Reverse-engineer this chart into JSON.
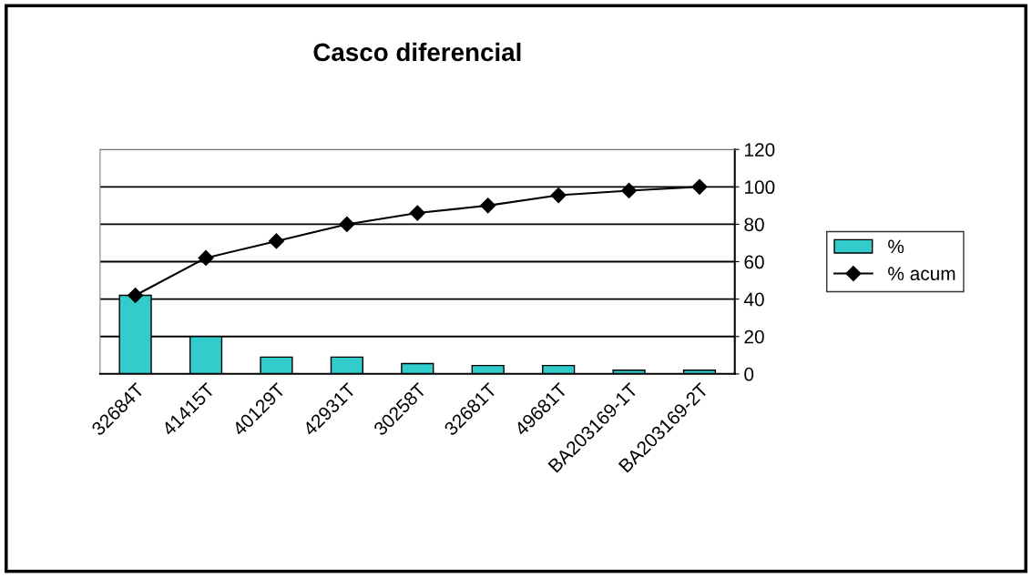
{
  "chart_data": {
    "type": "bar",
    "title": "Casco diferencial",
    "categories": [
      "32684T",
      "41415T",
      "40129T",
      "42931T",
      "30258T",
      "32681T",
      "49681T",
      "BA203169-1T",
      "BA203169-2T"
    ],
    "series": [
      {
        "name": "%",
        "color": "#33cccc",
        "values": [
          42,
          20,
          9,
          9,
          5.5,
          4.5,
          4.5,
          2,
          2
        ]
      },
      {
        "name": "% acum",
        "type": "line",
        "color": "#000000",
        "values": [
          42,
          62,
          71,
          80,
          86,
          90,
          95.5,
          98,
          100
        ]
      }
    ],
    "ylim": [
      0,
      120
    ],
    "yticks": [
      0,
      20,
      40,
      60,
      80,
      100,
      120
    ],
    "grid": "y",
    "legend": "right",
    "marker": "diamond"
  }
}
